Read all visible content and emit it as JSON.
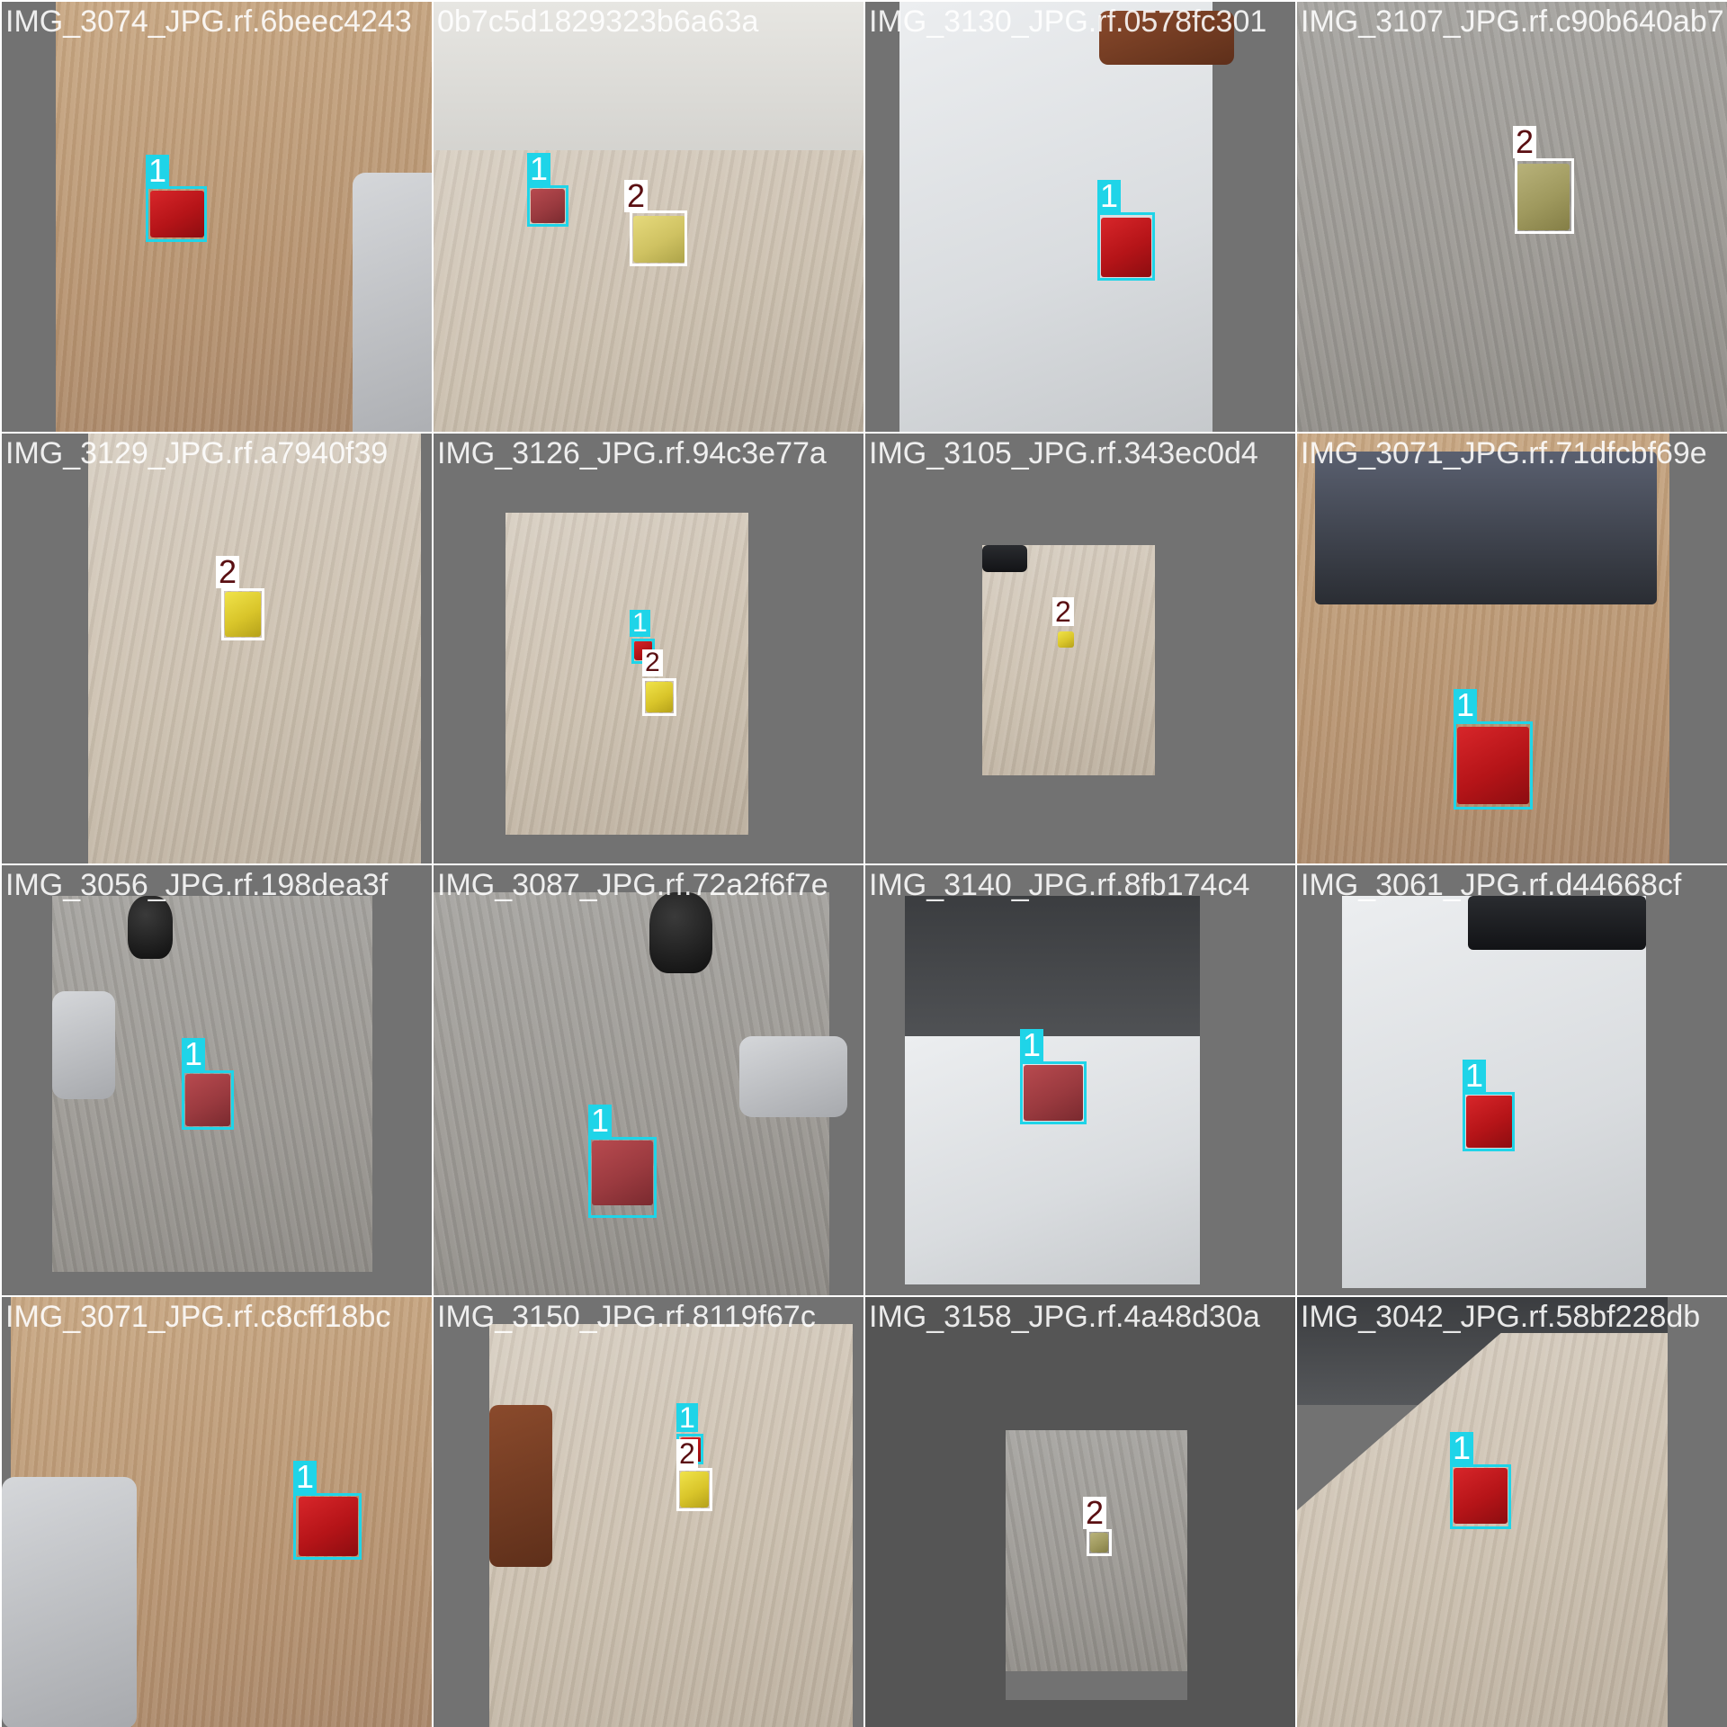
{
  "mosaic": {
    "class_colors": {
      "1": "#1fd4e8",
      "2": "#ffffff"
    },
    "tiles": [
      {
        "filename": "IMG_3074_JPG.rf.6beec4243",
        "detections": [
          {
            "label": "1"
          }
        ]
      },
      {
        "filename": "0b7c5d1829323b6a63a",
        "detections": [
          {
            "label": "1"
          },
          {
            "label": "2"
          }
        ]
      },
      {
        "filename": "IMG_3130_JPG.rf.0578fc301",
        "detections": [
          {
            "label": "1"
          }
        ]
      },
      {
        "filename": "IMG_3107_JPG.rf.c90b640ab7",
        "detections": [
          {
            "label": "2"
          }
        ]
      },
      {
        "filename": "IMG_3129_JPG.rf.a7940f39",
        "detections": [
          {
            "label": "2"
          }
        ]
      },
      {
        "filename": "IMG_3126_JPG.rf.94c3e77a",
        "detections": [
          {
            "label": "1"
          },
          {
            "label": "2"
          }
        ]
      },
      {
        "filename": "IMG_3105_JPG.rf.343ec0d4",
        "detections": [
          {
            "label": "2"
          }
        ]
      },
      {
        "filename": "IMG_3071_JPG.rf.71dfcbf69e",
        "detections": [
          {
            "label": "1"
          }
        ]
      },
      {
        "filename": "IMG_3056_JPG.rf.198dea3f",
        "detections": [
          {
            "label": "1"
          }
        ]
      },
      {
        "filename": "IMG_3087_JPG.rf.72a2f6f7e",
        "detections": [
          {
            "label": "1"
          }
        ]
      },
      {
        "filename": "IMG_3140_JPG.rf.8fb174c4",
        "detections": [
          {
            "label": "1"
          }
        ]
      },
      {
        "filename": "IMG_3061_JPG.rf.d44668cf",
        "detections": [
          {
            "label": "1"
          }
        ]
      },
      {
        "filename": "IMG_3071_JPG.rf.c8cff18bc",
        "detections": [
          {
            "label": "1"
          }
        ]
      },
      {
        "filename": "IMG_3150_JPG.rf.8119f67c",
        "detections": [
          {
            "label": "1"
          },
          {
            "label": "2"
          }
        ]
      },
      {
        "filename": "IMG_3158_JPG.rf.4a48d30a",
        "detections": [
          {
            "label": "2"
          }
        ]
      },
      {
        "filename": "IMG_3042_JPG.rf.58bf228db",
        "detections": [
          {
            "label": "1"
          }
        ]
      }
    ]
  }
}
